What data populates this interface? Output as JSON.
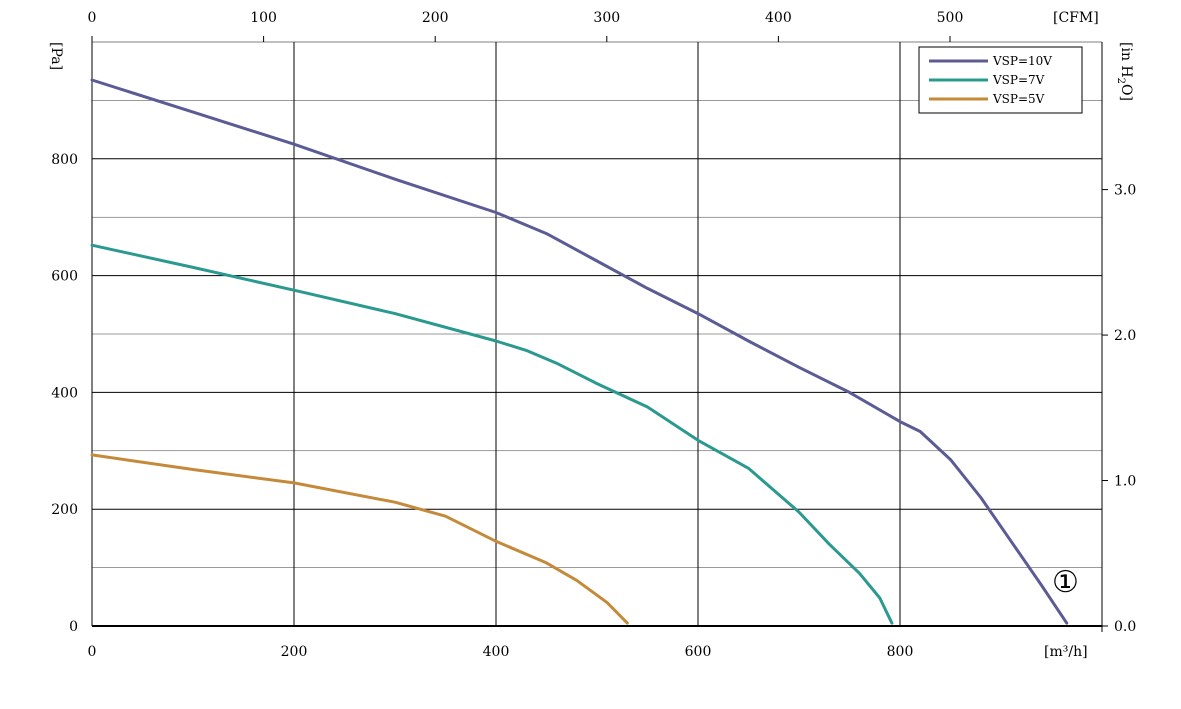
{
  "chart_data": {
    "type": "line",
    "x_unit": "[m³/h]",
    "x_ticks": [
      0,
      200,
      400,
      600,
      800
    ],
    "xlim": [
      0,
      1000
    ],
    "y_unit": "[Pa]",
    "y_ticks": [
      0,
      200,
      400,
      600,
      800
    ],
    "ylim": [
      0,
      1000
    ],
    "top_unit": "[CFM]",
    "top_ticks": [
      0,
      100,
      200,
      300,
      400,
      500
    ],
    "right_unit_base": "[in H",
    "right_unit_sub": "2",
    "right_unit_tail": "O]",
    "right_ticks": [
      "0.0",
      "1.0",
      "2.0",
      "3.0"
    ],
    "grid": true,
    "legend_position": "top-right",
    "marker_label": "①",
    "series": [
      {
        "name": "VSP=10V",
        "color": "#5b5b96",
        "points": [
          [
            0,
            935
          ],
          [
            100,
            880
          ],
          [
            200,
            825
          ],
          [
            300,
            765
          ],
          [
            400,
            708
          ],
          [
            450,
            672
          ],
          [
            500,
            625
          ],
          [
            550,
            578
          ],
          [
            600,
            535
          ],
          [
            650,
            488
          ],
          [
            700,
            443
          ],
          [
            750,
            400
          ],
          [
            800,
            350
          ],
          [
            820,
            333
          ],
          [
            850,
            285
          ],
          [
            880,
            220
          ],
          [
            910,
            145
          ],
          [
            940,
            70
          ],
          [
            965,
            5
          ]
        ]
      },
      {
        "name": "VSP=7V",
        "color": "#2a9990",
        "points": [
          [
            0,
            652
          ],
          [
            100,
            614
          ],
          [
            200,
            575
          ],
          [
            300,
            535
          ],
          [
            400,
            488
          ],
          [
            430,
            472
          ],
          [
            460,
            450
          ],
          [
            500,
            415
          ],
          [
            550,
            375
          ],
          [
            600,
            318
          ],
          [
            650,
            270
          ],
          [
            700,
            195
          ],
          [
            730,
            140
          ],
          [
            760,
            90
          ],
          [
            780,
            48
          ],
          [
            792,
            5
          ]
        ]
      },
      {
        "name": "VSP=5V",
        "color": "#c48a3a",
        "points": [
          [
            0,
            293
          ],
          [
            100,
            268
          ],
          [
            200,
            245
          ],
          [
            300,
            212
          ],
          [
            350,
            188
          ],
          [
            400,
            145
          ],
          [
            450,
            108
          ],
          [
            480,
            78
          ],
          [
            510,
            40
          ],
          [
            530,
            5
          ]
        ]
      }
    ]
  }
}
